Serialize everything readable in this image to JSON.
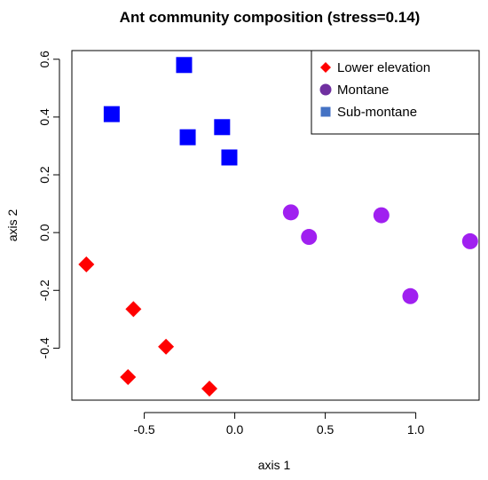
{
  "chart_data": {
    "type": "scatter",
    "title": "Ant community composition (stress=0.14)",
    "xlabel": "axis 1",
    "ylabel": "axis 2",
    "xlim": [
      -0.9,
      1.35
    ],
    "ylim": [
      -0.58,
      0.63
    ],
    "xticks": [
      -0.5,
      0.0,
      0.5,
      1.0
    ],
    "xtick_labels": [
      "-0.5",
      "0.0",
      "0.5",
      "1.0"
    ],
    "yticks": [
      -0.4,
      -0.2,
      0.0,
      0.2,
      0.4,
      0.6
    ],
    "ytick_labels": [
      "-0.4",
      "-0.2",
      "0.0",
      "0.2",
      "0.4",
      "0.6"
    ],
    "grid": false,
    "legend_position": "top-right",
    "series": [
      {
        "name": "Lower elevation",
        "marker": "diamond",
        "color": "#ff0000",
        "points": [
          {
            "x": -0.82,
            "y": -0.11
          },
          {
            "x": -0.56,
            "y": -0.265
          },
          {
            "x": -0.38,
            "y": -0.395
          },
          {
            "x": -0.59,
            "y": -0.5
          },
          {
            "x": -0.14,
            "y": -0.54
          }
        ]
      },
      {
        "name": "Montane",
        "marker": "circle",
        "color": "#a020f0",
        "points": [
          {
            "x": 0.31,
            "y": 0.07
          },
          {
            "x": 0.41,
            "y": -0.015
          },
          {
            "x": 0.81,
            "y": 0.06
          },
          {
            "x": 1.3,
            "y": -0.03
          },
          {
            "x": 0.97,
            "y": -0.22
          }
        ]
      },
      {
        "name": "Sub-montane",
        "marker": "square",
        "color": "#0000ff",
        "points": [
          {
            "x": -0.28,
            "y": 0.58
          },
          {
            "x": -0.68,
            "y": 0.41
          },
          {
            "x": -0.26,
            "y": 0.33
          },
          {
            "x": -0.07,
            "y": 0.365
          },
          {
            "x": -0.03,
            "y": 0.26
          }
        ]
      }
    ],
    "legend_marker_colors": {
      "Lower elevation": "#ff0000",
      "Montane": "#7030a0",
      "Sub-montane": "#4472c4"
    }
  }
}
